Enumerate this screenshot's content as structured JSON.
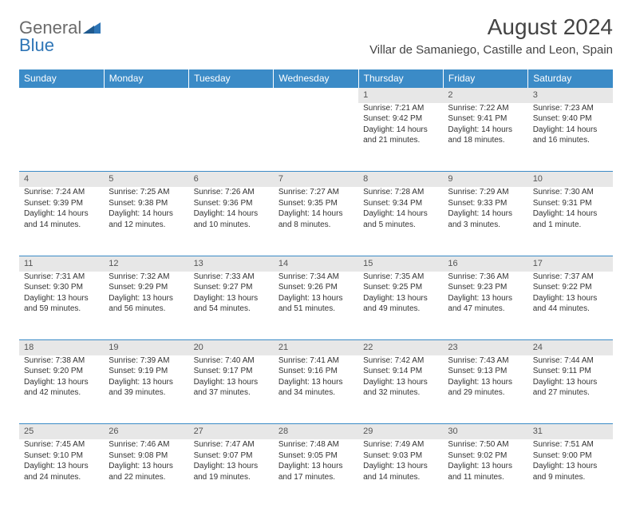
{
  "brand": {
    "general": "General",
    "blue": "Blue",
    "accent_color": "#2e75b6"
  },
  "header": {
    "title": "August 2024",
    "location": "Villar de Samaniego, Castille and Leon, Spain"
  },
  "colors": {
    "header_bg": "#3b8bc7",
    "header_text": "#ffffff",
    "daynum_bg": "#e7e7e7",
    "text": "#333333",
    "border": "#3b8bc7"
  },
  "weekdays": [
    "Sunday",
    "Monday",
    "Tuesday",
    "Wednesday",
    "Thursday",
    "Friday",
    "Saturday"
  ],
  "weeks": [
    {
      "days": [
        null,
        null,
        null,
        null,
        {
          "n": "1",
          "sr": "7:21 AM",
          "ss": "9:42 PM",
          "dl": "14 hours and 21 minutes."
        },
        {
          "n": "2",
          "sr": "7:22 AM",
          "ss": "9:41 PM",
          "dl": "14 hours and 18 minutes."
        },
        {
          "n": "3",
          "sr": "7:23 AM",
          "ss": "9:40 PM",
          "dl": "14 hours and 16 minutes."
        }
      ]
    },
    {
      "days": [
        {
          "n": "4",
          "sr": "7:24 AM",
          "ss": "9:39 PM",
          "dl": "14 hours and 14 minutes."
        },
        {
          "n": "5",
          "sr": "7:25 AM",
          "ss": "9:38 PM",
          "dl": "14 hours and 12 minutes."
        },
        {
          "n": "6",
          "sr": "7:26 AM",
          "ss": "9:36 PM",
          "dl": "14 hours and 10 minutes."
        },
        {
          "n": "7",
          "sr": "7:27 AM",
          "ss": "9:35 PM",
          "dl": "14 hours and 8 minutes."
        },
        {
          "n": "8",
          "sr": "7:28 AM",
          "ss": "9:34 PM",
          "dl": "14 hours and 5 minutes."
        },
        {
          "n": "9",
          "sr": "7:29 AM",
          "ss": "9:33 PM",
          "dl": "14 hours and 3 minutes."
        },
        {
          "n": "10",
          "sr": "7:30 AM",
          "ss": "9:31 PM",
          "dl": "14 hours and 1 minute."
        }
      ]
    },
    {
      "days": [
        {
          "n": "11",
          "sr": "7:31 AM",
          "ss": "9:30 PM",
          "dl": "13 hours and 59 minutes."
        },
        {
          "n": "12",
          "sr": "7:32 AM",
          "ss": "9:29 PM",
          "dl": "13 hours and 56 minutes."
        },
        {
          "n": "13",
          "sr": "7:33 AM",
          "ss": "9:27 PM",
          "dl": "13 hours and 54 minutes."
        },
        {
          "n": "14",
          "sr": "7:34 AM",
          "ss": "9:26 PM",
          "dl": "13 hours and 51 minutes."
        },
        {
          "n": "15",
          "sr": "7:35 AM",
          "ss": "9:25 PM",
          "dl": "13 hours and 49 minutes."
        },
        {
          "n": "16",
          "sr": "7:36 AM",
          "ss": "9:23 PM",
          "dl": "13 hours and 47 minutes."
        },
        {
          "n": "17",
          "sr": "7:37 AM",
          "ss": "9:22 PM",
          "dl": "13 hours and 44 minutes."
        }
      ]
    },
    {
      "days": [
        {
          "n": "18",
          "sr": "7:38 AM",
          "ss": "9:20 PM",
          "dl": "13 hours and 42 minutes."
        },
        {
          "n": "19",
          "sr": "7:39 AM",
          "ss": "9:19 PM",
          "dl": "13 hours and 39 minutes."
        },
        {
          "n": "20",
          "sr": "7:40 AM",
          "ss": "9:17 PM",
          "dl": "13 hours and 37 minutes."
        },
        {
          "n": "21",
          "sr": "7:41 AM",
          "ss": "9:16 PM",
          "dl": "13 hours and 34 minutes."
        },
        {
          "n": "22",
          "sr": "7:42 AM",
          "ss": "9:14 PM",
          "dl": "13 hours and 32 minutes."
        },
        {
          "n": "23",
          "sr": "7:43 AM",
          "ss": "9:13 PM",
          "dl": "13 hours and 29 minutes."
        },
        {
          "n": "24",
          "sr": "7:44 AM",
          "ss": "9:11 PM",
          "dl": "13 hours and 27 minutes."
        }
      ]
    },
    {
      "days": [
        {
          "n": "25",
          "sr": "7:45 AM",
          "ss": "9:10 PM",
          "dl": "13 hours and 24 minutes."
        },
        {
          "n": "26",
          "sr": "7:46 AM",
          "ss": "9:08 PM",
          "dl": "13 hours and 22 minutes."
        },
        {
          "n": "27",
          "sr": "7:47 AM",
          "ss": "9:07 PM",
          "dl": "13 hours and 19 minutes."
        },
        {
          "n": "28",
          "sr": "7:48 AM",
          "ss": "9:05 PM",
          "dl": "13 hours and 17 minutes."
        },
        {
          "n": "29",
          "sr": "7:49 AM",
          "ss": "9:03 PM",
          "dl": "13 hours and 14 minutes."
        },
        {
          "n": "30",
          "sr": "7:50 AM",
          "ss": "9:02 PM",
          "dl": "13 hours and 11 minutes."
        },
        {
          "n": "31",
          "sr": "7:51 AM",
          "ss": "9:00 PM",
          "dl": "13 hours and 9 minutes."
        }
      ]
    }
  ],
  "labels": {
    "sunrise": "Sunrise:",
    "sunset": "Sunset:",
    "daylight": "Daylight:"
  }
}
